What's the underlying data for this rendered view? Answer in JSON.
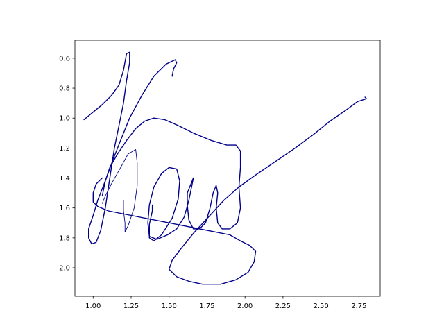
{
  "chart_data": {
    "type": "line",
    "title": "",
    "xlabel": "",
    "ylabel": "",
    "xlim": [
      0.88,
      2.89
    ],
    "ylim": [
      2.19,
      0.48
    ],
    "y_inverted": true,
    "grid": false,
    "x_ticks": [
      {
        "value": 1.0,
        "label": "1.00"
      },
      {
        "value": 1.25,
        "label": "1.25"
      },
      {
        "value": 1.5,
        "label": "1.50"
      },
      {
        "value": 1.75,
        "label": "1.75"
      },
      {
        "value": 2.0,
        "label": "2.00"
      },
      {
        "value": 2.25,
        "label": "2.25"
      },
      {
        "value": 2.5,
        "label": "2.50"
      },
      {
        "value": 2.75,
        "label": "2.75"
      }
    ],
    "y_ticks": [
      {
        "value": 0.6,
        "label": "0.6"
      },
      {
        "value": 0.8,
        "label": "0.8"
      },
      {
        "value": 1.0,
        "label": "1.0"
      },
      {
        "value": 1.2,
        "label": "1.2"
      },
      {
        "value": 1.4,
        "label": "1.4"
      },
      {
        "value": 1.6,
        "label": "1.6"
      },
      {
        "value": 1.8,
        "label": "1.8"
      },
      {
        "value": 2.0,
        "label": "2.0"
      }
    ],
    "series": [
      {
        "color": "#00008b",
        "width": 1.4,
        "points": [
          [
            0.94,
            1.01
          ],
          [
            1.0,
            0.96
          ],
          [
            1.06,
            0.91
          ],
          [
            1.12,
            0.85
          ],
          [
            1.17,
            0.78
          ],
          [
            1.2,
            0.68
          ],
          [
            1.22,
            0.57
          ],
          [
            1.24,
            0.56
          ],
          [
            1.24,
            0.63
          ],
          [
            1.22,
            0.75
          ],
          [
            1.2,
            0.9
          ],
          [
            1.17,
            1.05
          ],
          [
            1.14,
            1.2
          ],
          [
            1.11,
            1.4
          ],
          [
            1.08,
            1.6
          ],
          [
            1.05,
            1.75
          ],
          [
            1.02,
            1.83
          ],
          [
            0.99,
            1.84
          ],
          [
            0.97,
            1.8
          ],
          [
            0.97,
            1.74
          ],
          [
            1.0,
            1.65
          ],
          [
            1.03,
            1.55
          ],
          [
            1.08,
            1.42
          ],
          [
            1.13,
            1.28
          ],
          [
            1.18,
            1.15
          ],
          [
            1.24,
            1.0
          ],
          [
            1.32,
            0.85
          ],
          [
            1.4,
            0.72
          ],
          [
            1.48,
            0.64
          ],
          [
            1.54,
            0.61
          ],
          [
            1.55,
            0.63
          ],
          [
            1.53,
            0.67
          ],
          [
            1.52,
            0.72
          ]
        ]
      },
      {
        "color": "#00008b",
        "width": 1.4,
        "points": [
          [
            1.06,
            1.52
          ],
          [
            1.08,
            1.42
          ],
          [
            1.11,
            1.33
          ],
          [
            1.16,
            1.24
          ],
          [
            1.22,
            1.15
          ],
          [
            1.28,
            1.07
          ],
          [
            1.34,
            1.02
          ],
          [
            1.4,
            1.0
          ],
          [
            1.47,
            1.01
          ],
          [
            1.56,
            1.05
          ],
          [
            1.66,
            1.1
          ],
          [
            1.78,
            1.15
          ],
          [
            1.88,
            1.18
          ],
          [
            1.94,
            1.18
          ],
          [
            1.97,
            1.22
          ],
          [
            1.97,
            1.33
          ],
          [
            1.96,
            1.46
          ],
          [
            1.97,
            1.6
          ],
          [
            1.95,
            1.7
          ],
          [
            1.9,
            1.74
          ],
          [
            1.85,
            1.74
          ],
          [
            1.82,
            1.7
          ],
          [
            1.81,
            1.6
          ],
          [
            1.82,
            1.5
          ],
          [
            1.81,
            1.45
          ],
          [
            1.79,
            1.5
          ],
          [
            1.77,
            1.6
          ],
          [
            1.74,
            1.7
          ],
          [
            1.7,
            1.74
          ],
          [
            1.66,
            1.74
          ],
          [
            1.63,
            1.68
          ],
          [
            1.62,
            1.58
          ],
          [
            1.62,
            1.5
          ],
          [
            1.64,
            1.45
          ],
          [
            1.66,
            1.4
          ],
          [
            1.65,
            1.45
          ],
          [
            1.63,
            1.55
          ],
          [
            1.6,
            1.66
          ],
          [
            1.55,
            1.74
          ],
          [
            1.49,
            1.78
          ],
          [
            1.42,
            1.81
          ],
          [
            1.37,
            1.79
          ],
          [
            1.36,
            1.7
          ],
          [
            1.37,
            1.58
          ],
          [
            1.4,
            1.46
          ],
          [
            1.45,
            1.37
          ],
          [
            1.5,
            1.33
          ],
          [
            1.55,
            1.34
          ],
          [
            1.57,
            1.42
          ],
          [
            1.56,
            1.54
          ],
          [
            1.52,
            1.67
          ],
          [
            1.45,
            1.78
          ],
          [
            1.4,
            1.82
          ],
          [
            1.37,
            1.8
          ],
          [
            1.37,
            1.71
          ],
          [
            1.39,
            1.62
          ],
          [
            1.39,
            1.58
          ]
        ]
      },
      {
        "color": "#00008b",
        "width": 1.4,
        "points": [
          [
            1.06,
            1.4
          ],
          [
            1.02,
            1.44
          ],
          [
            1.0,
            1.5
          ],
          [
            1.0,
            1.56
          ],
          [
            1.03,
            1.59
          ],
          [
            1.1,
            1.62
          ],
          [
            1.25,
            1.65
          ],
          [
            1.45,
            1.69
          ],
          [
            1.65,
            1.73
          ],
          [
            1.8,
            1.76
          ],
          [
            1.9,
            1.78
          ],
          [
            1.97,
            1.82
          ],
          [
            2.03,
            1.85
          ],
          [
            2.07,
            1.89
          ],
          [
            2.06,
            1.96
          ],
          [
            2.02,
            2.03
          ],
          [
            1.94,
            2.08
          ],
          [
            1.84,
            2.11
          ],
          [
            1.72,
            2.11
          ],
          [
            1.63,
            2.09
          ],
          [
            1.55,
            2.06
          ],
          [
            1.5,
            2.01
          ],
          [
            1.52,
            1.95
          ],
          [
            1.58,
            1.87
          ],
          [
            1.66,
            1.77
          ],
          [
            1.76,
            1.66
          ],
          [
            1.86,
            1.55
          ],
          [
            1.96,
            1.46
          ],
          [
            2.07,
            1.38
          ],
          [
            2.2,
            1.29
          ],
          [
            2.33,
            1.2
          ],
          [
            2.45,
            1.11
          ],
          [
            2.56,
            1.02
          ],
          [
            2.66,
            0.95
          ],
          [
            2.74,
            0.89
          ],
          [
            2.8,
            0.87
          ],
          [
            2.79,
            0.86
          ]
        ]
      },
      {
        "color": "#00008b",
        "width": 0.9,
        "points": [
          [
            1.06,
            1.57
          ],
          [
            1.08,
            1.52
          ],
          [
            1.12,
            1.44
          ],
          [
            1.17,
            1.35
          ],
          [
            1.23,
            1.24
          ],
          [
            1.28,
            1.21
          ],
          [
            1.29,
            1.3
          ],
          [
            1.29,
            1.45
          ],
          [
            1.27,
            1.6
          ],
          [
            1.23,
            1.72
          ],
          [
            1.21,
            1.76
          ],
          [
            1.21,
            1.7
          ],
          [
            1.2,
            1.62
          ],
          [
            1.2,
            1.55
          ]
        ]
      }
    ]
  }
}
